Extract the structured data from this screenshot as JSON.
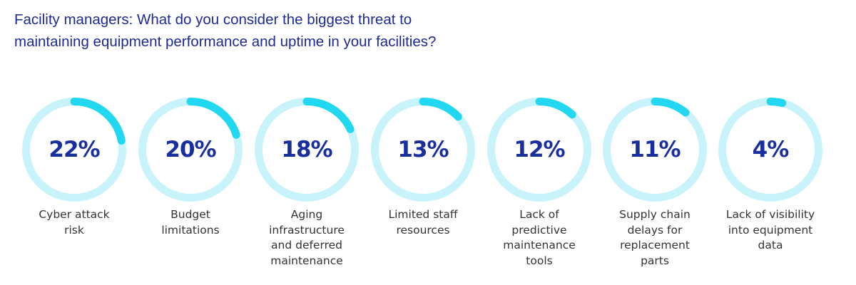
{
  "title": {
    "line1": "Facility managers: What do you consider the biggest threat to",
    "line2": "maintaining equipment performance and uptime in your facilities?"
  },
  "colors": {
    "title": "#1e2a8f",
    "value_text": "#1a2f9e",
    "label_text": "#333333",
    "track": "#c9f3fb",
    "arc_start": "#17309f",
    "arc_end": "#22d8f0"
  },
  "items": [
    {
      "value": "22%",
      "label": "Cyber attack\nrisk"
    },
    {
      "value": "20%",
      "label": "Budget\nlimitations"
    },
    {
      "value": "18%",
      "label": "Aging\ninfrastructure\nand deferred\nmaintenance"
    },
    {
      "value": "13%",
      "label": "Limited staff\nresources"
    },
    {
      "value": "12%",
      "label": "Lack of\npredictive\nmaintenance\ntools"
    },
    {
      "value": "11%",
      "label": "Supply chain\ndelays for\nreplacement\nparts"
    },
    {
      "value": "4%",
      "label": "Lack of visibility\ninto equipment\ndata"
    }
  ],
  "chart_data": {
    "type": "donut-gauges",
    "title": "Facility managers: What do you consider the biggest threat to maintaining equipment performance and uptime in your facilities?",
    "categories": [
      "Cyber attack risk",
      "Budget limitations",
      "Aging infrastructure and deferred maintenance",
      "Limited staff resources",
      "Lack of predictive maintenance tools",
      "Supply chain delays for replacement parts",
      "Lack of visibility into equipment data"
    ],
    "values": [
      22,
      20,
      18,
      13,
      12,
      11,
      4
    ],
    "unit": "%",
    "xlabel": "",
    "ylabel": "",
    "ylim": [
      0,
      100
    ],
    "legend": "none",
    "grid": false
  }
}
